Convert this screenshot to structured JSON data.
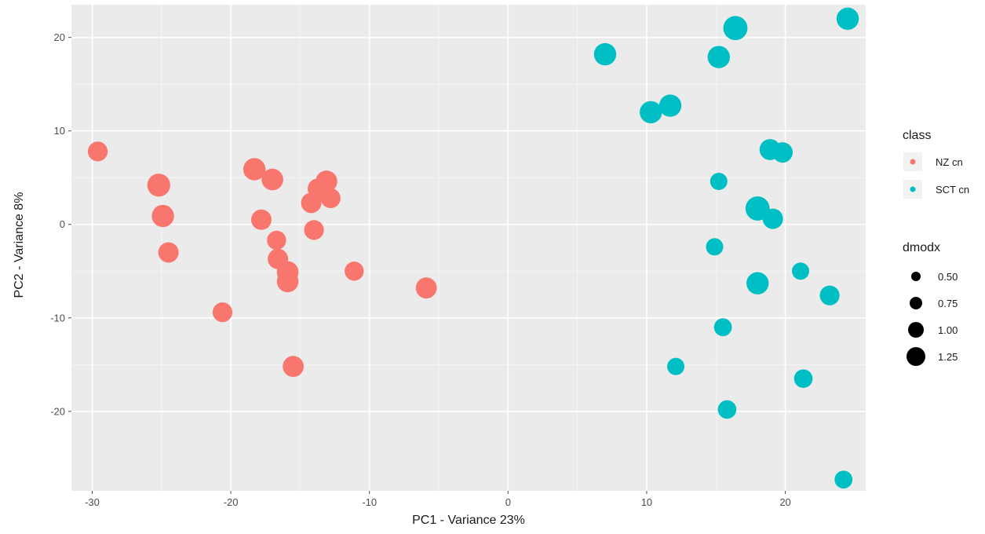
{
  "chart_data": {
    "type": "scatter",
    "xlabel": "PC1 - Variance 23%",
    "ylabel": "PC2 - Variance 8%",
    "xlim": [
      -31.5,
      25.8
    ],
    "ylim": [
      -28.5,
      23.5
    ],
    "x_ticks": [
      -30,
      -20,
      -10,
      0,
      10,
      20
    ],
    "x_tick_labels": [
      "-30",
      "-20",
      "-10",
      "0",
      "10",
      "20"
    ],
    "y_ticks": [
      -20,
      -10,
      0,
      10,
      20
    ],
    "y_tick_labels": [
      "-20",
      "-10",
      "0",
      "10",
      "20"
    ],
    "grid": true,
    "background": "#ebebeb",
    "legend_position": "right",
    "color_legend": {
      "title": "class",
      "entries": [
        {
          "name": "NZ cn",
          "color": "#f8766d"
        },
        {
          "name": "SCT cn",
          "color": "#00bfc4"
        }
      ]
    },
    "size_legend": {
      "title": "dmodx",
      "entries": [
        {
          "label": "0.50",
          "value": 0.5
        },
        {
          "label": "0.75",
          "value": 0.75
        },
        {
          "label": "1.00",
          "value": 1.0
        },
        {
          "label": "1.25",
          "value": 1.25
        }
      ]
    },
    "series": [
      {
        "name": "NZ cn",
        "color": "#f8766d",
        "points": [
          {
            "x": -29.6,
            "y": 7.8,
            "size": 0.95
          },
          {
            "x": -25.2,
            "y": 4.2,
            "size": 1.2
          },
          {
            "x": -24.9,
            "y": 0.9,
            "size": 1.15
          },
          {
            "x": -24.5,
            "y": -3.0,
            "size": 1.0
          },
          {
            "x": -20.6,
            "y": -9.4,
            "size": 0.95
          },
          {
            "x": -18.3,
            "y": 5.9,
            "size": 1.15
          },
          {
            "x": -17.8,
            "y": 0.5,
            "size": 1.0
          },
          {
            "x": -17.0,
            "y": 4.8,
            "size": 1.1
          },
          {
            "x": -16.7,
            "y": -1.7,
            "size": 0.9
          },
          {
            "x": -16.6,
            "y": -3.7,
            "size": 1.0
          },
          {
            "x": -15.9,
            "y": -5.1,
            "size": 1.1
          },
          {
            "x": -15.9,
            "y": -6.1,
            "size": 1.1
          },
          {
            "x": -15.5,
            "y": -15.2,
            "size": 1.05
          },
          {
            "x": -14.2,
            "y": 2.3,
            "size": 1.0
          },
          {
            "x": -14.0,
            "y": -0.6,
            "size": 0.95
          },
          {
            "x": -13.7,
            "y": 3.8,
            "size": 1.05
          },
          {
            "x": -13.1,
            "y": 4.6,
            "size": 1.1
          },
          {
            "x": -12.8,
            "y": 2.8,
            "size": 0.95
          },
          {
            "x": -11.1,
            "y": -5.0,
            "size": 0.9
          },
          {
            "x": -5.9,
            "y": -6.8,
            "size": 1.05
          }
        ]
      },
      {
        "name": "SCT cn",
        "color": "#00bfc4",
        "points": [
          {
            "x": 7.0,
            "y": 18.2,
            "size": 1.15
          },
          {
            "x": 10.3,
            "y": 12.0,
            "size": 1.15
          },
          {
            "x": 11.7,
            "y": 12.7,
            "size": 1.15
          },
          {
            "x": 12.1,
            "y": -15.2,
            "size": 0.75
          },
          {
            "x": 14.9,
            "y": -2.4,
            "size": 0.75
          },
          {
            "x": 15.2,
            "y": 4.6,
            "size": 0.75
          },
          {
            "x": 15.2,
            "y": 17.9,
            "size": 1.15
          },
          {
            "x": 15.5,
            "y": -11.0,
            "size": 0.8
          },
          {
            "x": 15.8,
            "y": -19.8,
            "size": 0.85
          },
          {
            "x": 16.4,
            "y": 21.0,
            "size": 1.3
          },
          {
            "x": 18.0,
            "y": 1.7,
            "size": 1.3
          },
          {
            "x": 18.0,
            "y": -6.3,
            "size": 1.15
          },
          {
            "x": 18.9,
            "y": 8.0,
            "size": 1.05
          },
          {
            "x": 19.1,
            "y": 0.6,
            "size": 1.0
          },
          {
            "x": 19.8,
            "y": 7.7,
            "size": 1.0
          },
          {
            "x": 21.1,
            "y": -5.0,
            "size": 0.75
          },
          {
            "x": 21.3,
            "y": -16.5,
            "size": 0.85
          },
          {
            "x": 23.2,
            "y": -7.6,
            "size": 0.95
          },
          {
            "x": 24.2,
            "y": -27.3,
            "size": 0.8
          },
          {
            "x": 24.5,
            "y": 22.0,
            "size": 1.15
          }
        ]
      }
    ]
  }
}
